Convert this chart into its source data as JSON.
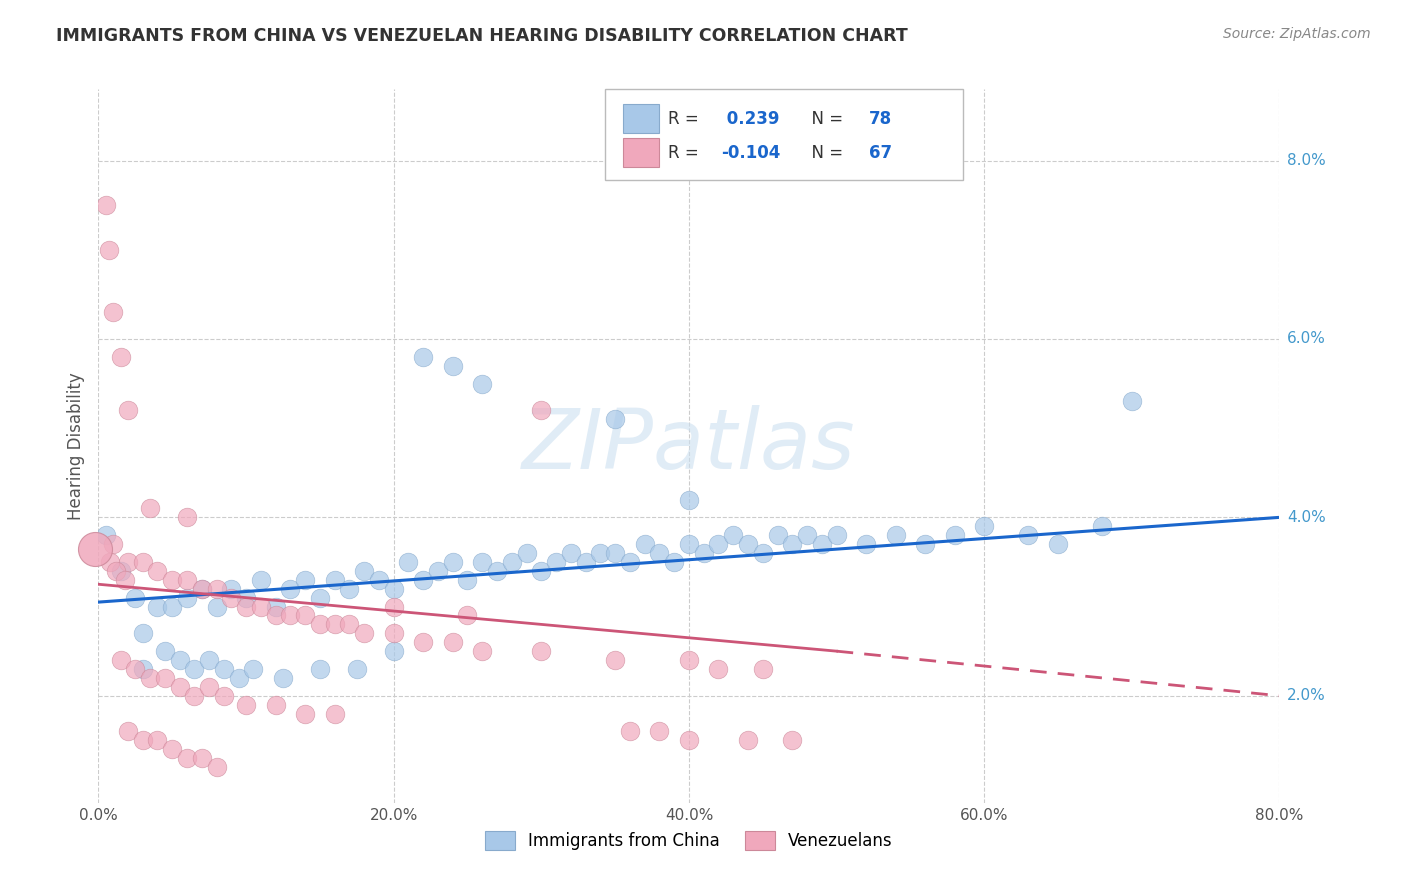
{
  "title": "IMMIGRANTS FROM CHINA VS VENEZUELAN HEARING DISABILITY CORRELATION CHART",
  "source": "Source: ZipAtlas.com",
  "ylabel": "Hearing Disability",
  "blue_color": "#a8c8e8",
  "pink_color": "#f0a8bc",
  "blue_line_color": "#1a66cc",
  "pink_line_color": "#cc5577",
  "watermark": "ZIPatlas",
  "legend_blue_r": "0.239",
  "legend_blue_n": "78",
  "legend_pink_r": "-0.104",
  "legend_pink_n": "67",
  "blue_scatter": [
    [
      1.5,
      3.4
    ],
    [
      2.5,
      3.1
    ],
    [
      3.0,
      2.7
    ],
    [
      4.0,
      3.0
    ],
    [
      5.0,
      3.0
    ],
    [
      6.0,
      3.1
    ],
    [
      7.0,
      3.2
    ],
    [
      8.0,
      3.0
    ],
    [
      9.0,
      3.2
    ],
    [
      10.0,
      3.1
    ],
    [
      11.0,
      3.3
    ],
    [
      12.0,
      3.0
    ],
    [
      13.0,
      3.2
    ],
    [
      14.0,
      3.3
    ],
    [
      15.0,
      3.1
    ],
    [
      16.0,
      3.3
    ],
    [
      17.0,
      3.2
    ],
    [
      18.0,
      3.4
    ],
    [
      19.0,
      3.3
    ],
    [
      20.0,
      3.2
    ],
    [
      21.0,
      3.5
    ],
    [
      22.0,
      3.3
    ],
    [
      23.0,
      3.4
    ],
    [
      24.0,
      3.5
    ],
    [
      25.0,
      3.3
    ],
    [
      26.0,
      3.5
    ],
    [
      27.0,
      3.4
    ],
    [
      28.0,
      3.5
    ],
    [
      29.0,
      3.6
    ],
    [
      30.0,
      3.4
    ],
    [
      31.0,
      3.5
    ],
    [
      32.0,
      3.6
    ],
    [
      33.0,
      3.5
    ],
    [
      34.0,
      3.6
    ],
    [
      35.0,
      3.6
    ],
    [
      36.0,
      3.5
    ],
    [
      37.0,
      3.7
    ],
    [
      38.0,
      3.6
    ],
    [
      39.0,
      3.5
    ],
    [
      40.0,
      3.7
    ],
    [
      41.0,
      3.6
    ],
    [
      42.0,
      3.7
    ],
    [
      43.0,
      3.8
    ],
    [
      44.0,
      3.7
    ],
    [
      45.0,
      3.6
    ],
    [
      46.0,
      3.8
    ],
    [
      47.0,
      3.7
    ],
    [
      48.0,
      3.8
    ],
    [
      49.0,
      3.7
    ],
    [
      50.0,
      3.8
    ],
    [
      52.0,
      3.7
    ],
    [
      54.0,
      3.8
    ],
    [
      56.0,
      3.7
    ],
    [
      58.0,
      3.8
    ],
    [
      60.0,
      3.9
    ],
    [
      63.0,
      3.8
    ],
    [
      65.0,
      3.7
    ],
    [
      68.0,
      3.9
    ],
    [
      70.0,
      5.3
    ],
    [
      3.0,
      2.3
    ],
    [
      4.5,
      2.5
    ],
    [
      5.5,
      2.4
    ],
    [
      6.5,
      2.3
    ],
    [
      7.5,
      2.4
    ],
    [
      8.5,
      2.3
    ],
    [
      9.5,
      2.2
    ],
    [
      10.5,
      2.3
    ],
    [
      12.5,
      2.2
    ],
    [
      15.0,
      2.3
    ],
    [
      17.5,
      2.3
    ],
    [
      20.0,
      2.5
    ],
    [
      22.0,
      5.8
    ],
    [
      24.0,
      5.7
    ],
    [
      26.0,
      5.5
    ],
    [
      35.0,
      5.1
    ],
    [
      40.0,
      4.2
    ],
    [
      0.5,
      3.8
    ]
  ],
  "pink_scatter": [
    [
      0.5,
      7.5
    ],
    [
      0.7,
      7.0
    ],
    [
      1.0,
      6.3
    ],
    [
      1.5,
      5.8
    ],
    [
      2.0,
      5.2
    ],
    [
      3.5,
      4.1
    ],
    [
      6.0,
      4.0
    ],
    [
      1.0,
      3.7
    ],
    [
      2.0,
      3.5
    ],
    [
      3.0,
      3.5
    ],
    [
      4.0,
      3.4
    ],
    [
      5.0,
      3.3
    ],
    [
      6.0,
      3.3
    ],
    [
      7.0,
      3.2
    ],
    [
      8.0,
      3.2
    ],
    [
      9.0,
      3.1
    ],
    [
      10.0,
      3.0
    ],
    [
      11.0,
      3.0
    ],
    [
      12.0,
      2.9
    ],
    [
      13.0,
      2.9
    ],
    [
      14.0,
      2.9
    ],
    [
      15.0,
      2.8
    ],
    [
      16.0,
      2.8
    ],
    [
      17.0,
      2.8
    ],
    [
      18.0,
      2.7
    ],
    [
      20.0,
      2.7
    ],
    [
      22.0,
      2.6
    ],
    [
      24.0,
      2.6
    ],
    [
      26.0,
      2.5
    ],
    [
      30.0,
      2.5
    ],
    [
      35.0,
      2.4
    ],
    [
      40.0,
      2.4
    ],
    [
      42.0,
      2.3
    ],
    [
      45.0,
      2.3
    ],
    [
      1.5,
      2.4
    ],
    [
      2.5,
      2.3
    ],
    [
      3.5,
      2.2
    ],
    [
      4.5,
      2.2
    ],
    [
      5.5,
      2.1
    ],
    [
      6.5,
      2.0
    ],
    [
      7.5,
      2.1
    ],
    [
      8.5,
      2.0
    ],
    [
      10.0,
      1.9
    ],
    [
      12.0,
      1.9
    ],
    [
      14.0,
      1.8
    ],
    [
      16.0,
      1.8
    ],
    [
      2.0,
      1.6
    ],
    [
      3.0,
      1.5
    ],
    [
      4.0,
      1.5
    ],
    [
      5.0,
      1.4
    ],
    [
      6.0,
      1.3
    ],
    [
      7.0,
      1.3
    ],
    [
      8.0,
      1.2
    ],
    [
      36.0,
      1.6
    ],
    [
      40.0,
      1.5
    ],
    [
      38.0,
      1.6
    ],
    [
      30.0,
      5.2
    ],
    [
      0.8,
      3.5
    ],
    [
      1.2,
      3.4
    ],
    [
      1.8,
      3.3
    ],
    [
      20.0,
      3.0
    ],
    [
      25.0,
      2.9
    ],
    [
      44.0,
      1.5
    ],
    [
      47.0,
      1.5
    ]
  ],
  "blue_line": [
    [
      0,
      3.05
    ],
    [
      80,
      4.0
    ]
  ],
  "pink_line_solid": [
    [
      0,
      3.25
    ],
    [
      50,
      2.5
    ]
  ],
  "pink_line_dash": [
    [
      50,
      2.5
    ],
    [
      80,
      2.0
    ]
  ],
  "xlim": [
    0,
    80
  ],
  "ylim": [
    0.8,
    8.8
  ],
  "xtick_vals": [
    0,
    20,
    40,
    60,
    80
  ],
  "ytick_vals": [
    2,
    4,
    6,
    8
  ]
}
